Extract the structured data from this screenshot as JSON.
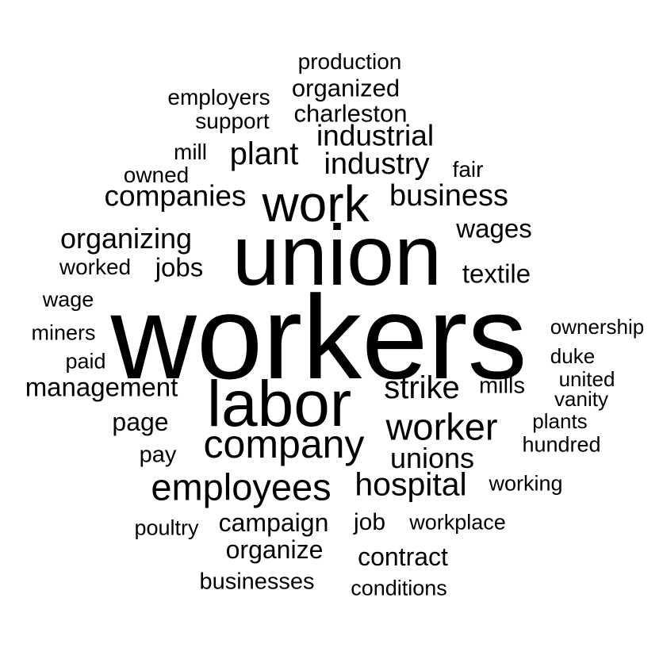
{
  "text_color": "#000000",
  "background_color": "#ffffff",
  "words": [
    {
      "text": "workers"
    },
    {
      "text": "union"
    },
    {
      "text": "labor"
    },
    {
      "text": "work"
    },
    {
      "text": "company"
    },
    {
      "text": "employees"
    },
    {
      "text": "worker"
    },
    {
      "text": "hospital"
    },
    {
      "text": "strike"
    },
    {
      "text": "business"
    },
    {
      "text": "companies"
    },
    {
      "text": "organizing"
    },
    {
      "text": "plant"
    },
    {
      "text": "industry"
    },
    {
      "text": "industrial"
    },
    {
      "text": "unions"
    },
    {
      "text": "management"
    },
    {
      "text": "wages"
    },
    {
      "text": "textile"
    },
    {
      "text": "jobs"
    },
    {
      "text": "page"
    },
    {
      "text": "campaign"
    },
    {
      "text": "organize"
    },
    {
      "text": "contract"
    },
    {
      "text": "charleston"
    },
    {
      "text": "organized"
    },
    {
      "text": "mills"
    },
    {
      "text": "job"
    },
    {
      "text": "pay"
    },
    {
      "text": "businesses"
    },
    {
      "text": "production"
    },
    {
      "text": "employers"
    },
    {
      "text": "support"
    },
    {
      "text": "worked"
    },
    {
      "text": "fair"
    },
    {
      "text": "mill"
    },
    {
      "text": "owned"
    },
    {
      "text": "wage"
    },
    {
      "text": "miners"
    },
    {
      "text": "paid"
    },
    {
      "text": "ownership"
    },
    {
      "text": "duke"
    },
    {
      "text": "united"
    },
    {
      "text": "vanity"
    },
    {
      "text": "plants"
    },
    {
      "text": "hundred"
    },
    {
      "text": "working"
    },
    {
      "text": "workplace"
    },
    {
      "text": "poultry"
    },
    {
      "text": "conditions"
    }
  ]
}
